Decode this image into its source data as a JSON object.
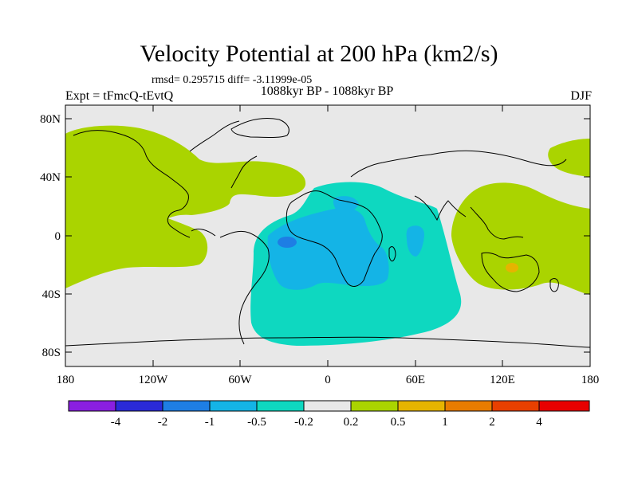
{
  "title": "Velocity Potential at 200 hPa (km2/s)",
  "stats": "rmsd= 0.295715 diff= -3.11999e-05",
  "left_label": "Expt = tFmcQ-tEvtQ",
  "center_label": "1088kyr BP - 1088kyr BP",
  "right_label": "DJF",
  "lat_labels": [
    "80N",
    "40N",
    "0",
    "40S",
    "80S"
  ],
  "lon_labels": [
    "180",
    "120W",
    "60W",
    "0",
    "60E",
    "120E",
    "180"
  ],
  "colorbar": {
    "colors": [
      "#8a1fe0",
      "#2a2ad8",
      "#1e7ee4",
      "#14b4e6",
      "#0ed8c0",
      "#e8e8e8",
      "#aad400",
      "#e6b400",
      "#e87c00",
      "#e84000",
      "#e80000"
    ],
    "labels": [
      "-4",
      "-2",
      "-1",
      "-0.5",
      "-0.2",
      "0.2",
      "0.5",
      "1",
      "2",
      "4"
    ]
  },
  "map_colors": {
    "background": "#e8e8e8",
    "green": "#aad400",
    "teal": "#0ed8c0",
    "blue": "#14b4e6",
    "darkblue": "#1e7ee4",
    "orange": "#e6b400"
  }
}
